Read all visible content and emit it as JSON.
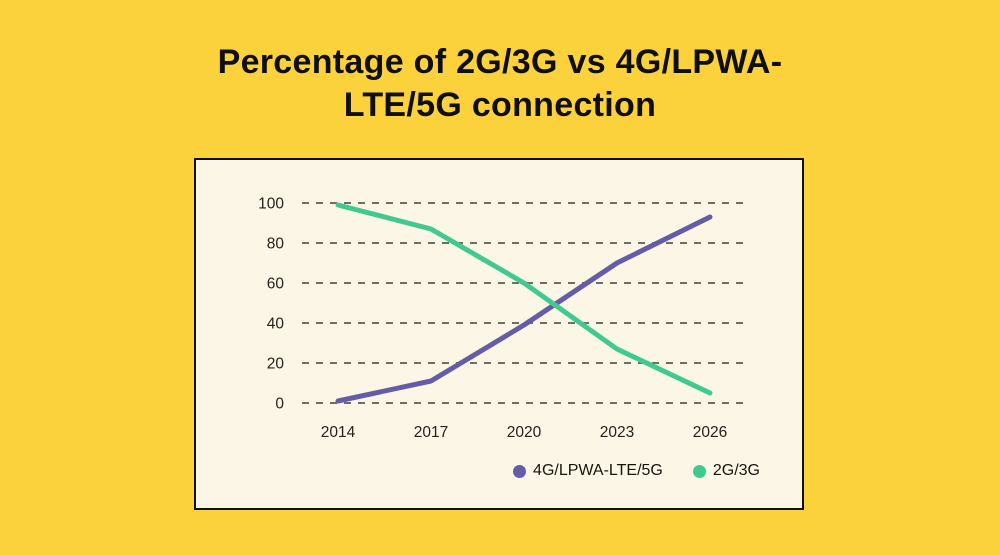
{
  "page": {
    "background_color": "#fcd23c"
  },
  "title": {
    "line1": "Percentage of 2G/3G vs 4G/LPWA-",
    "line2": "LTE/5G connection",
    "full": "Percentage of 2G/3G vs 4G/LPWA-LTE/5G connection"
  },
  "chart_data": {
    "type": "line",
    "title": "Percentage of 2G/3G vs 4G/LPWA-LTE/5G connection",
    "categories": [
      "2014",
      "2017",
      "2020",
      "2023",
      "2026"
    ],
    "series": [
      {
        "name": "4G/LPWA-LTE/5G",
        "color": "#655ca7",
        "values": [
          1,
          11,
          39,
          70,
          93
        ]
      },
      {
        "name": "2G/3G",
        "color": "#40c990",
        "values": [
          99,
          87,
          60,
          27,
          5
        ]
      }
    ],
    "xlabel": "",
    "ylabel": "",
    "y_ticks": [
      0,
      20,
      40,
      60,
      80,
      100
    ],
    "ylim": [
      0,
      100
    ],
    "grid": "horizontal-dashed",
    "grid_color": "#6e6d66",
    "legend_position": "bottom-right",
    "plot_background": "#fbf6e5",
    "frame_border_color": "#101010",
    "axis_text_color": "#23221d"
  }
}
